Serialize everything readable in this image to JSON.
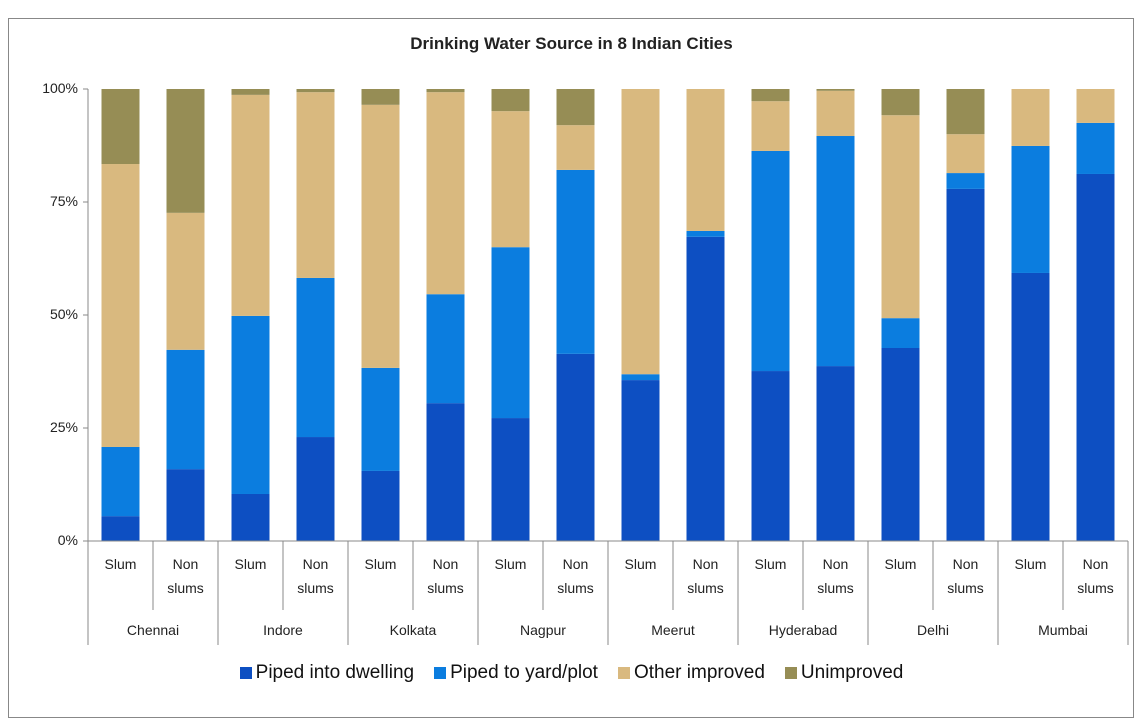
{
  "chart_data": {
    "type": "stacked-bar",
    "title": "Drinking Water Source in 8 Indian Cities",
    "categories": [
      "Slum",
      "Non slums",
      "Slum",
      "Non slums",
      "Slum",
      "Non slums",
      "Slum",
      "Non slums",
      "Slum",
      "Non slums",
      "Slum",
      "Non slums",
      "Slum",
      "Non slums",
      "Slum",
      "Non slums"
    ],
    "groups": [
      "Chennai",
      "Indore",
      "Kolkata",
      "Nagpur",
      "Meerut",
      "Hyderabad",
      "Delhi",
      "Mumbai"
    ],
    "series": [
      {
        "name": "Piped into dwelling",
        "color": "#0d4fc2",
        "values": [
          5.5,
          15.9,
          10.4,
          23.0,
          15.5,
          30.5,
          27.2,
          41.4,
          35.6,
          67.3,
          37.6,
          38.7,
          42.7,
          77.9,
          59.3,
          81.2
        ]
      },
      {
        "name": "Piped to yard/plot",
        "color": "#0b7ddf",
        "values": [
          15.3,
          26.4,
          39.4,
          35.2,
          22.8,
          24.1,
          37.8,
          40.7,
          1.3,
          1.3,
          48.7,
          50.9,
          6.6,
          3.5,
          28.1,
          11.3
        ]
      },
      {
        "name": "Other improved",
        "color": "#d9b97f",
        "values": [
          62.6,
          30.3,
          48.9,
          41.1,
          58.2,
          44.7,
          30.1,
          9.9,
          63.1,
          31.4,
          11.0,
          10.0,
          44.9,
          8.6,
          12.6,
          7.5
        ]
      },
      {
        "name": "Unimproved",
        "color": "#968d55",
        "values": [
          16.6,
          27.4,
          1.3,
          0.7,
          3.5,
          0.7,
          4.9,
          8.0,
          0,
          0,
          2.7,
          0.4,
          5.8,
          10.0,
          0,
          0
        ]
      }
    ],
    "ylim": [
      0,
      100
    ],
    "yticks": [
      {
        "value": 0,
        "label": "0%"
      },
      {
        "value": 25,
        "label": "25%"
      },
      {
        "value": 50,
        "label": "50%"
      },
      {
        "value": 75,
        "label": "75%"
      },
      {
        "value": 100,
        "label": "100%"
      }
    ],
    "grid": false
  }
}
